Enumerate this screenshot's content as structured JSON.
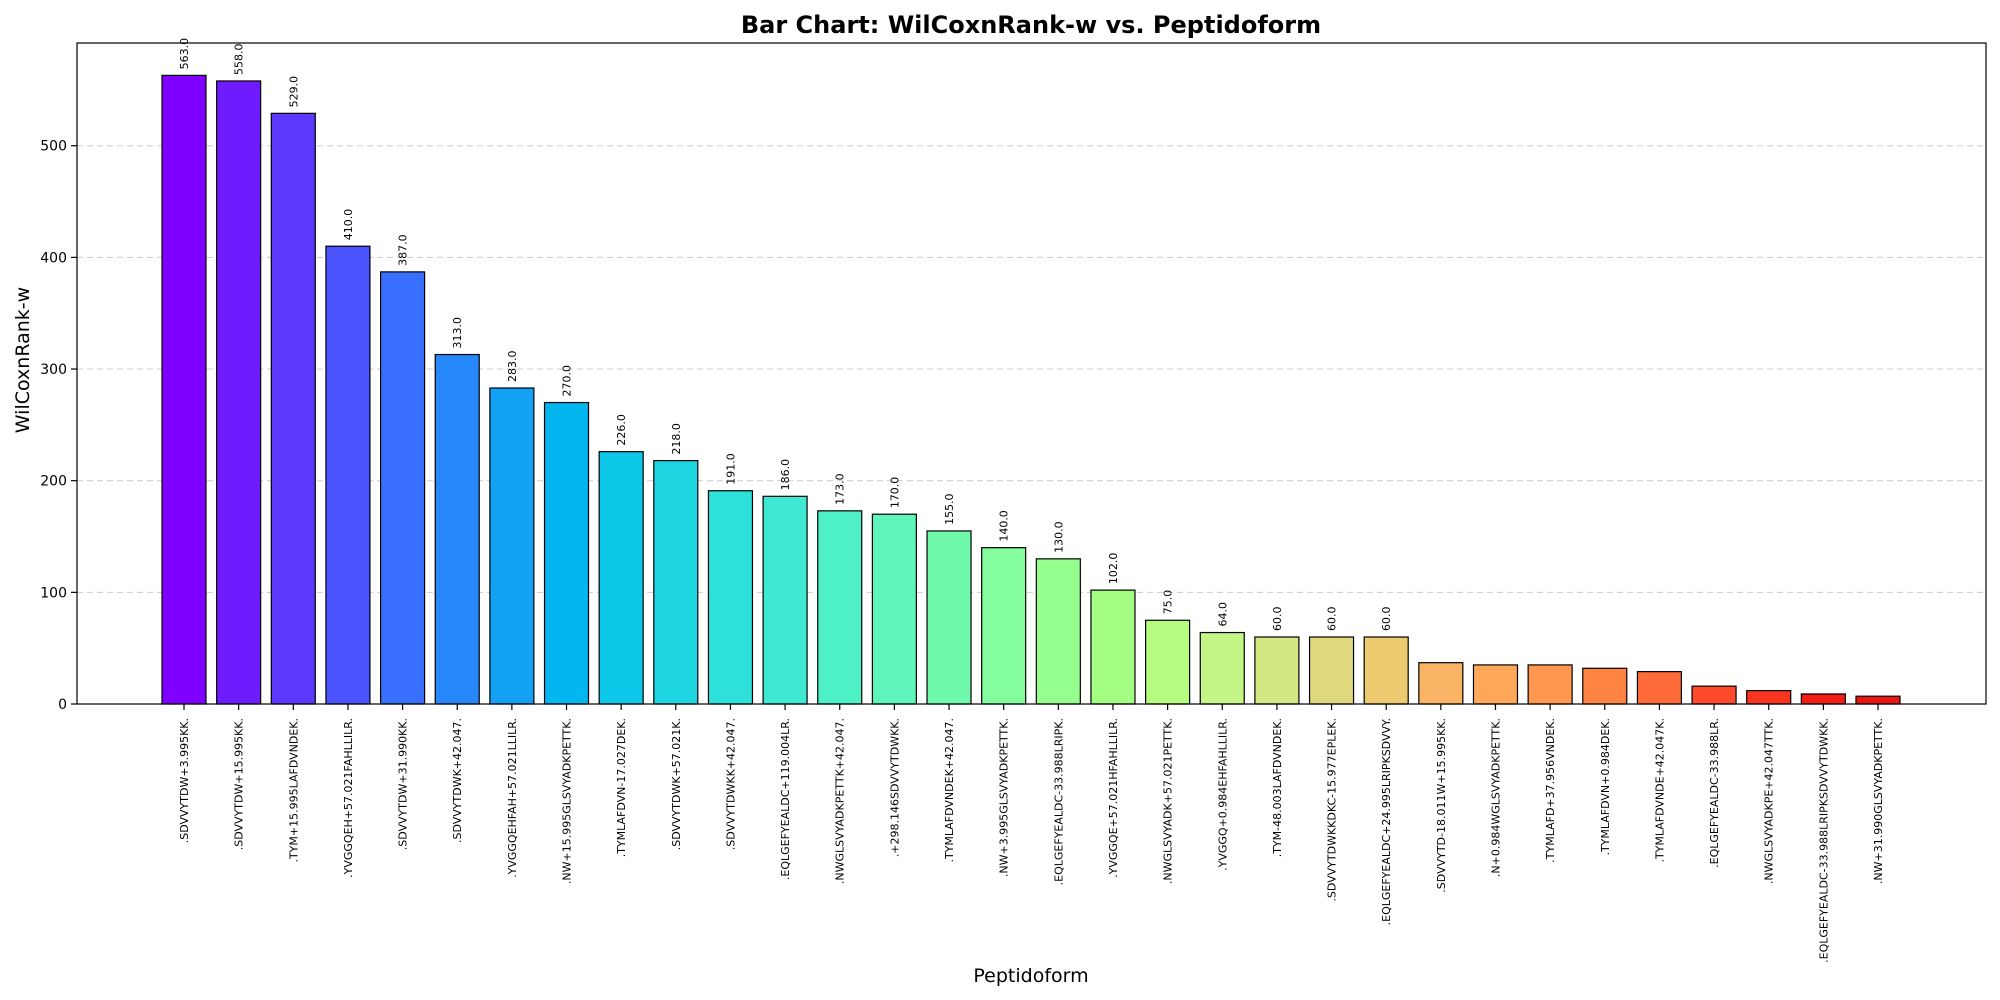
{
  "chart_data": {
    "type": "bar",
    "title": "Bar Chart: WilCoxnRank-w vs. Peptidoform",
    "xlabel": "Peptidoform",
    "ylabel": "WilCoxnRank-w",
    "ylim": [
      0,
      592
    ],
    "yticks": [
      0,
      100,
      200,
      300,
      400,
      500
    ],
    "grid": "y-dashed",
    "categories": [
      ".SDVVYTDW+3.995KK.",
      ".SDVVYTDW+15.995KK.",
      ".TYM+15.995LAFDVNDEK.",
      ".YVGGQEH+57.021FAHLLILR.",
      ".SDVVYTDW+31.990KK.",
      ".SDVVYTDWK+42.047.",
      ".YVGGQEHFAH+57.021LLILR.",
      ".NW+15.995GLSVYADKPETTK.",
      ".TYMLAFDVN-17.027DEK.",
      ".SDVVYTDWK+57.021K.",
      ".SDVVYTDWKK+42.047.",
      ".EQLGEFYEALDC+119.004LR.",
      ".NWGLSVYADKPETTK+42.047.",
      ".+298.146SDVVYTDWKK.",
      ".TYMLAFDVNDEK+42.047.",
      ".NW+3.995GLSVYADKPETTK.",
      ".EQLGEFYEALDC-33.988LRIPK.",
      ".YVGGQE+57.021HFAHLLILR.",
      ".NWGLSVYADK+57.021PETTK.",
      ".YVGGQ+0.984EHFAHLLILR.",
      ".TYM-48.003LAFDVNDEK.",
      ".SDVVYTDWKKDKC-15.977EPLEK.",
      ".EQLGEFYEALDC+24.995LRIPKSDVVY.",
      ".SDVVYTD-18.011W+15.995KK.",
      ".N+0.984WGLSVYADKPETTK.",
      ".TYMLAFD+37.956VNDEK.",
      ".TYMLAFDVN+0.984DEK.",
      ".TYMLAFDVNDE+42.047K.",
      ".EQLGEFYEALDC-33.988LR.",
      ".NWGLSVYADKPE+42.047TTK.",
      ".EQLGEFYEALDC-33.988LRIPKSDVVYTDWKK.",
      ".NW+31.990GLSVYADKPETTK."
    ],
    "values": [
      563,
      558,
      529,
      410,
      387,
      313,
      283,
      270,
      226,
      218,
      191,
      186,
      173,
      170,
      155,
      140,
      130,
      102,
      75,
      64,
      60,
      60,
      60,
      37,
      35,
      35,
      32,
      29,
      16,
      12,
      9,
      7
    ],
    "value_labels": [
      "563.0",
      "558.0",
      "529.0",
      "410.0",
      "387.0",
      "313.0",
      "283.0",
      "270.0",
      "226.0",
      "218.0",
      "191.0",
      "186.0",
      "173.0",
      "170.0",
      "155.0",
      "140.0",
      "130.0",
      "102.0",
      "75.0",
      "64.0",
      "60.0",
      "60.0",
      "60.0",
      "",
      "",
      "",
      "",
      "",
      "",
      "",
      "",
      ""
    ],
    "colormap": "rainbow",
    "colors": [
      "#8000ff",
      "#6e1cff",
      "#5c38ff",
      "#4a53fe",
      "#386ffd",
      "#2688fb",
      "#12a1f5",
      "#02b6ef",
      "#0dc8e8",
      "#1ed6e1",
      "#2de0da",
      "#3ee8d2",
      "#4ef0c6",
      "#5ff5ba",
      "#71f9ab",
      "#83fd9d",
      "#94fe8f",
      "#a4fe81",
      "#b5fc80",
      "#c4f587",
      "#d3e883",
      "#e0d87c",
      "#edca70",
      "#fab466",
      "#ffa85a",
      "#ff974f",
      "#ff8444",
      "#ff6b39",
      "#fd4a2a",
      "#f9341f",
      "#f01e14",
      "#ea1410"
    ]
  }
}
